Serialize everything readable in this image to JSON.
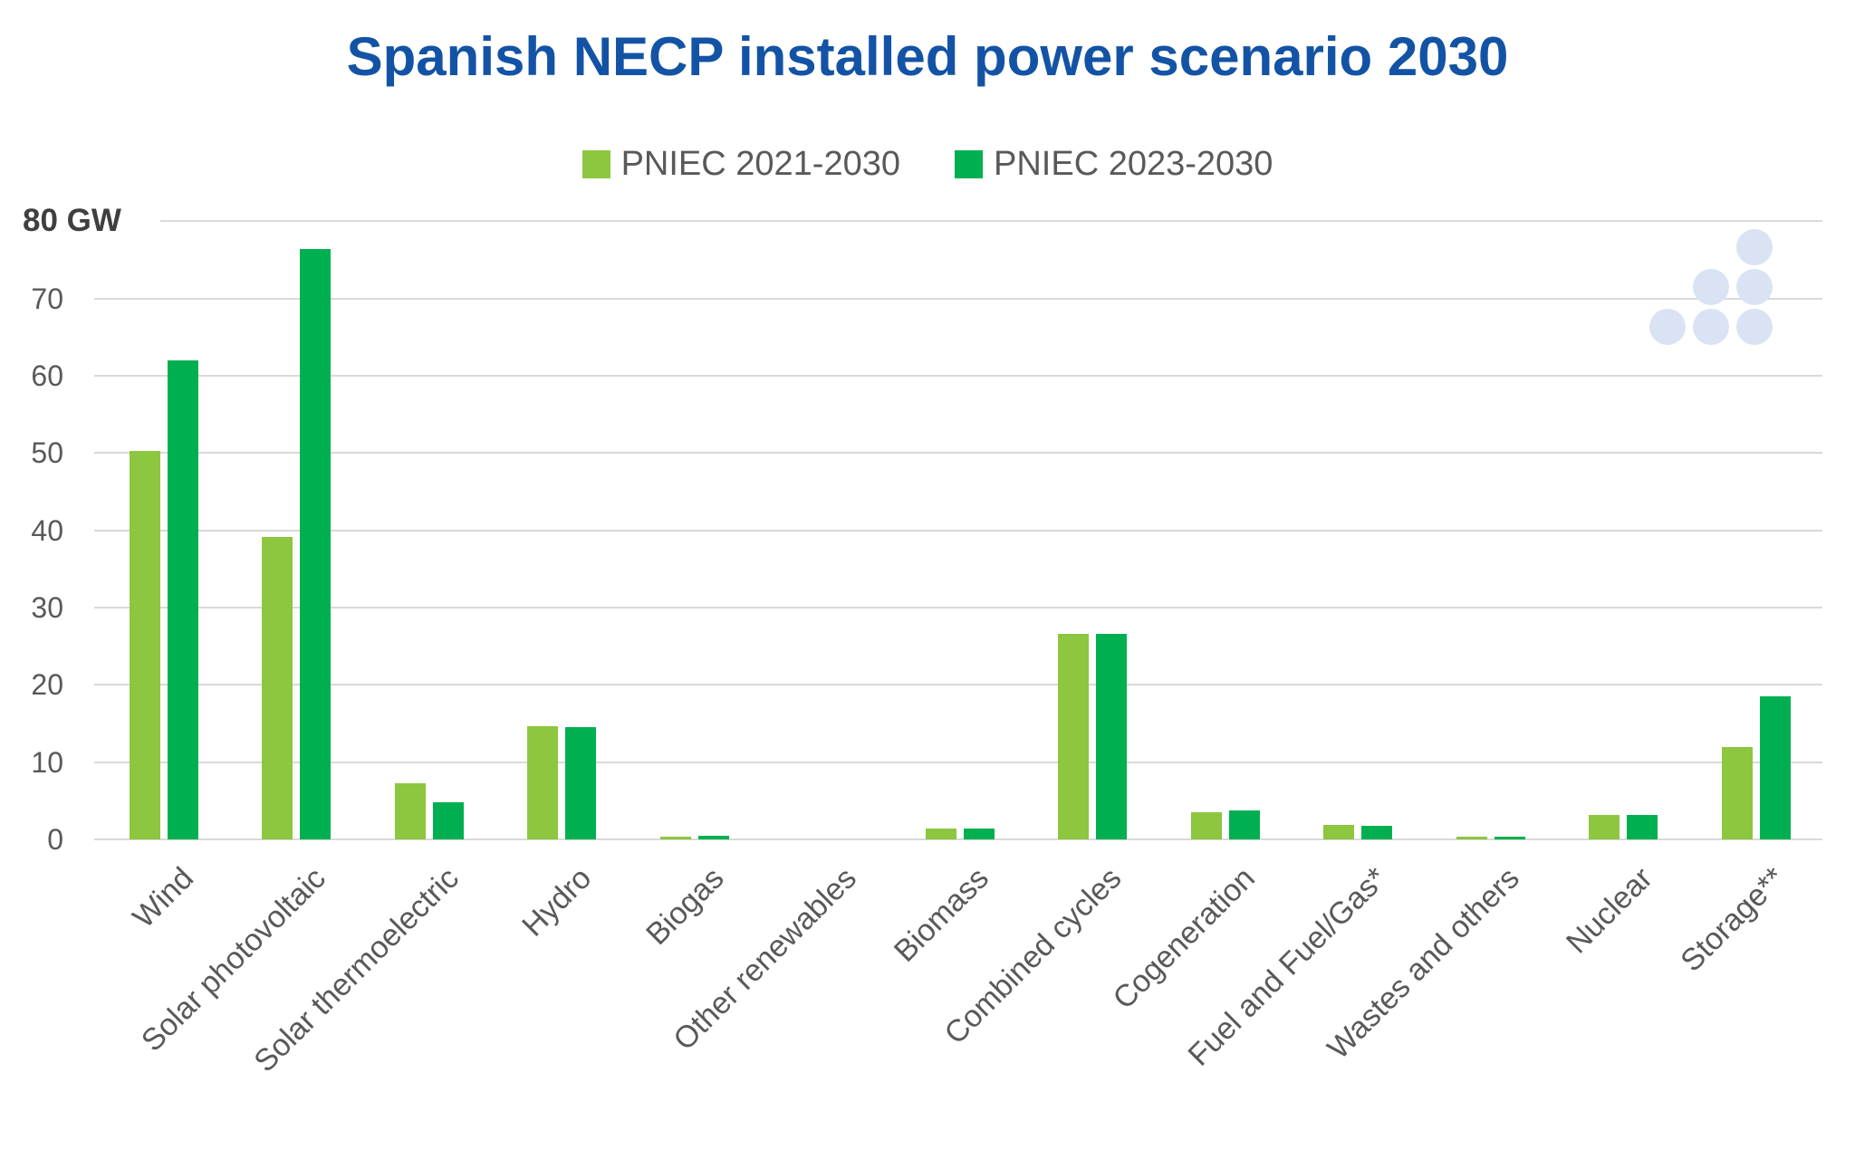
{
  "chart": {
    "title": "Spanish NECP installed power scenario 2030"
  },
  "chart_data": {
    "type": "bar",
    "title": "Spanish NECP installed power scenario 2030",
    "unit": "GW",
    "categories": [
      "Wind",
      "Solar photovoltaic",
      "Solar thermoelectric",
      "Hydro",
      "Biogas",
      "Other renewables",
      "Biomass",
      "Combined cycles",
      "Cogeneration",
      "Fuel and Fuel/Gas*",
      "Wastes and others",
      "Nuclear",
      "Storage**"
    ],
    "series": [
      {
        "name": "PNIEC 2021-2030",
        "color": "#8DC63F",
        "values": [
          50.3,
          39.2,
          7.3,
          14.6,
          0.3,
          0,
          1.4,
          26.6,
          3.5,
          1.9,
          0.3,
          3.2,
          12.0
        ]
      },
      {
        "name": "PNIEC 2023-2030",
        "color": "#00B050",
        "values": [
          62.0,
          76.4,
          4.8,
          14.5,
          0.5,
          0,
          1.4,
          26.6,
          3.8,
          1.8,
          0.3,
          3.2,
          18.5
        ]
      }
    ],
    "ylim": [
      0,
      80
    ],
    "yticks": [
      0,
      10,
      20,
      30,
      40,
      50,
      60,
      70,
      80
    ],
    "y_axis_top_label": "80 GW",
    "grid": "horizontal",
    "legend_position": "top"
  },
  "colors": {
    "title": "#1353A5",
    "axis_text": "#595959",
    "axis_top_text": "#3F3F3F",
    "gridline": "#D9D9D9",
    "background": "#FFFFFF",
    "logo_dot": "#D9E3F3"
  },
  "logo": {
    "name": "six-dot-triangle-logo"
  }
}
